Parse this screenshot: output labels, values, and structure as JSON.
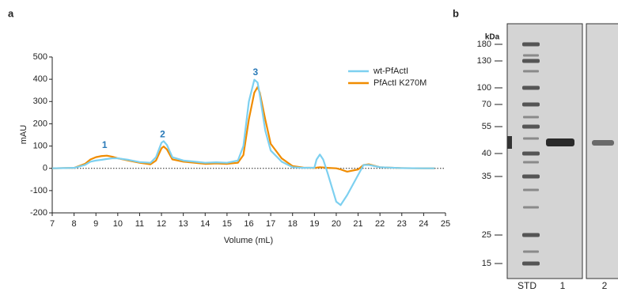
{
  "chart_data": {
    "type": "line",
    "xlabel": "Volume (mL)",
    "ylabel": "mAU",
    "x": [
      7,
      8,
      8.5,
      8.75,
      9,
      9.25,
      9.5,
      9.75,
      10,
      10.5,
      11,
      11.5,
      11.75,
      12,
      12.1,
      12.25,
      12.5,
      13,
      13.5,
      14,
      14.5,
      15,
      15.5,
      15.75,
      16,
      16.25,
      16.4,
      16.5,
      16.75,
      17,
      17.5,
      18,
      18.5,
      19,
      19.1,
      19.25,
      19.4,
      19.6,
      20,
      20.2,
      20.5,
      21,
      21.25,
      21.5,
      22,
      23,
      24,
      24.5
    ],
    "series": [
      {
        "name": "wt-PfActI",
        "color": "#7dd0f0",
        "values": [
          0,
          2,
          15,
          30,
          35,
          38,
          42,
          45,
          45,
          38,
          28,
          25,
          50,
          115,
          122,
          105,
          50,
          35,
          30,
          25,
          27,
          25,
          35,
          100,
          300,
          398,
          385,
          330,
          170,
          80,
          30,
          5,
          2,
          3,
          40,
          62,
          40,
          -20,
          -150,
          -165,
          -120,
          -30,
          15,
          15,
          5,
          1,
          0,
          0
        ]
      },
      {
        "name": "PfActI K270M",
        "color": "#f08c00",
        "values": [
          0,
          2,
          20,
          40,
          50,
          55,
          57,
          52,
          45,
          35,
          25,
          18,
          35,
          90,
          98,
          85,
          40,
          30,
          25,
          20,
          22,
          20,
          25,
          60,
          220,
          340,
          365,
          340,
          220,
          110,
          45,
          10,
          3,
          2,
          3,
          5,
          4,
          2,
          0,
          -5,
          -15,
          -5,
          15,
          18,
          5,
          1,
          0,
          0
        ]
      }
    ],
    "xlim": [
      7,
      25
    ],
    "xticks": [
      7,
      8,
      9,
      10,
      11,
      12,
      13,
      14,
      15,
      16,
      17,
      18,
      19,
      20,
      21,
      22,
      23,
      24,
      25
    ],
    "ylim": [
      -200,
      500
    ],
    "yticks": [
      -200,
      -100,
      0,
      100,
      200,
      300,
      400,
      500
    ],
    "zero_line": true,
    "legend": "upper right",
    "annotations": [
      {
        "text": "1",
        "x": 9.4,
        "y": 103
      },
      {
        "text": "2",
        "x": 12.05,
        "y": 150
      },
      {
        "text": "3",
        "x": 16.3,
        "y": 430
      }
    ],
    "annotation_color": "#2a7ab8"
  },
  "gel": {
    "unit_label": "kDa",
    "markers": [
      180,
      130,
      100,
      70,
      55,
      40,
      35,
      25,
      15
    ],
    "lanes": [
      "STD",
      "1",
      "2"
    ]
  },
  "panel_labels": [
    "a",
    "b"
  ]
}
